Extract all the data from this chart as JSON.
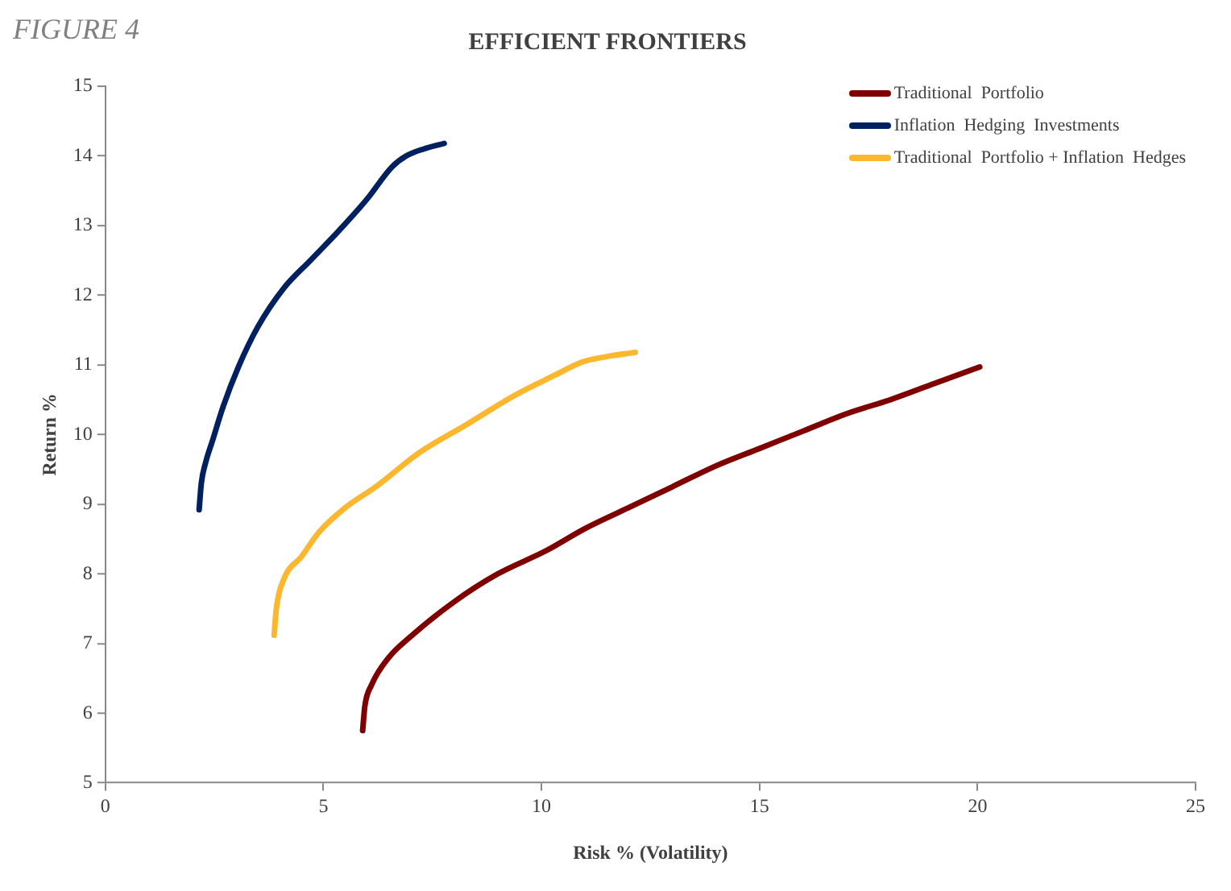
{
  "chart_data": {
    "type": "line",
    "title": "EFFICIENT FRONTIERS",
    "xlabel": "Risk % (Volatility)",
    "ylabel": "Return %",
    "annotations": [
      "FIGURE 4"
    ],
    "xlim": [
      0,
      25
    ],
    "xticks": [
      0,
      5,
      10,
      15,
      20,
      25
    ],
    "ylim": [
      5,
      15
    ],
    "yticks": [
      5,
      6,
      7,
      8,
      9,
      10,
      11,
      12,
      13,
      14,
      15
    ],
    "grid": false,
    "legend": "top right",
    "marker": "none",
    "line_style": "solid",
    "series": [
      {
        "name": "Traditional  Portfolio",
        "color": "#7f0000",
        "x": [
          5.9,
          5.95,
          6.1,
          6.5,
          7.0,
          8.0,
          9.0,
          10.1,
          11.0,
          12.0,
          13.0,
          14.0,
          15.0,
          16.0,
          17.0,
          18.0,
          19.0,
          20.05
        ],
        "values": [
          5.75,
          6.1,
          6.4,
          6.8,
          7.1,
          7.6,
          8.0,
          8.33,
          8.65,
          8.95,
          9.25,
          9.55,
          9.8,
          10.05,
          10.3,
          10.5,
          10.73,
          10.97
        ]
      },
      {
        "name": "Inflation  Hedging  Investments",
        "color": "#002060",
        "x": [
          2.15,
          2.2,
          2.3,
          2.45,
          2.7,
          3.05,
          3.5,
          4.09,
          4.7,
          5.36,
          6.0,
          6.57,
          6.9,
          7.3,
          7.77
        ],
        "values": [
          8.92,
          9.3,
          9.6,
          9.9,
          10.4,
          10.97,
          11.55,
          12.1,
          12.5,
          12.93,
          13.38,
          13.84,
          14.0,
          14.1,
          14.18
        ]
      },
      {
        "name": "Traditional  Portfolio + Inflation  Hedges",
        "color": "#fbb72e",
        "x": [
          3.87,
          3.92,
          4.09,
          4.5,
          4.9,
          5.5,
          6.2,
          7.2,
          8.3,
          9.38,
          10.3,
          10.93,
          11.5,
          12.15
        ],
        "values": [
          7.12,
          7.5,
          7.92,
          8.25,
          8.6,
          8.95,
          9.25,
          9.74,
          10.15,
          10.56,
          10.85,
          11.04,
          11.12,
          11.18
        ]
      }
    ]
  }
}
